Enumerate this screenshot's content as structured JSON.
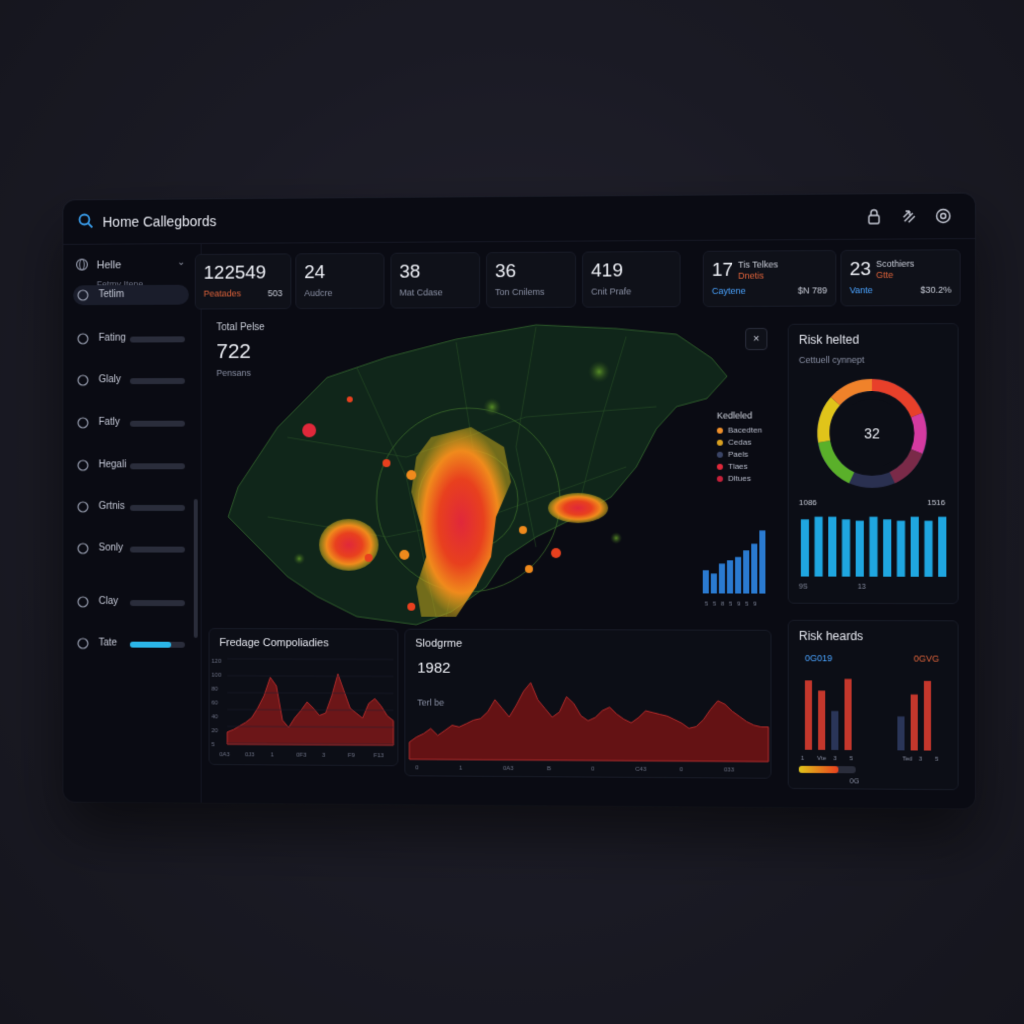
{
  "titlebar": {
    "title": "Home Callegbords",
    "icons": [
      "lock-icon",
      "share-icon",
      "settings-icon"
    ]
  },
  "sidebar": {
    "header_label": "Helle",
    "header_sub": "Fetmy Itene",
    "items": [
      {
        "label": "Tetlim",
        "icon": "person-icon",
        "active": true,
        "fill": 0
      },
      {
        "label": "Fating",
        "icon": "chart-icon",
        "active": false,
        "fill": 0
      },
      {
        "label": "Glaly",
        "icon": "globe-icon",
        "active": false,
        "fill": 0
      },
      {
        "label": "Fatly",
        "icon": "bars-icon",
        "active": false,
        "fill": 0
      },
      {
        "label": "Hegali",
        "icon": "user-icon",
        "active": false,
        "fill": 0
      },
      {
        "label": "Grtnis",
        "icon": "cloud-icon",
        "active": false,
        "fill": 0
      },
      {
        "label": "Sonly",
        "icon": "wave-icon",
        "active": false,
        "fill": 0
      },
      {
        "label": "Clay",
        "icon": "drop-icon",
        "active": false,
        "fill": 0
      },
      {
        "label": "Tate",
        "icon": "doc-icon",
        "active": false,
        "fill": 0.75
      }
    ]
  },
  "stats": [
    {
      "num": "122549",
      "label": "Peatades",
      "value": "503",
      "label_color": "#e0633a"
    },
    {
      "num": "24",
      "label": "Audcre",
      "value": ""
    },
    {
      "num": "38",
      "label": "Mat Cdase",
      "value": ""
    },
    {
      "num": "36",
      "label": "Ton Cnilems",
      "value": ""
    },
    {
      "num": "419",
      "label": "Cnit Prafe",
      "value": ""
    },
    {
      "num": "17",
      "top1": "Tis Telkes",
      "top2": "Dnetis",
      "label": "Caytene",
      "value": "$N 789",
      "label_color": "#4aa3ff"
    },
    {
      "num": "23",
      "top1": "Scothiers",
      "top2": "Gtte",
      "label": "Vante",
      "value": "$30.2%",
      "label_color": "#4aa3ff"
    }
  ],
  "map": {
    "caption": "Total Pelse",
    "value": "722",
    "sub": "Pensans",
    "legend_title": "Kedleled",
    "legend": [
      {
        "label": "Bacedten",
        "color": "#f0902a"
      },
      {
        "label": "Cedas",
        "color": "#d9a020"
      },
      {
        "label": "Paels",
        "color": "#3a4466"
      },
      {
        "label": "Tlaes",
        "color": "#e0283a"
      },
      {
        "label": "Dltues",
        "color": "#c8203a"
      }
    ],
    "mini_bars": [
      0.35,
      0.3,
      0.45,
      0.5,
      0.55,
      0.65,
      0.75,
      0.95
    ],
    "mini_ticks": [
      "5",
      "5",
      "8",
      "5",
      "9",
      "5",
      "9"
    ]
  },
  "risk_helped": {
    "title": "Risk helted",
    "subtitle": "Cettuell cynnept",
    "donut_value": "32",
    "bar_label_left": "1086",
    "bar_label_right": "1516",
    "bars": [
      0.86,
      0.9,
      0.9,
      0.86,
      0.84,
      0.9,
      0.86,
      0.84,
      0.9,
      0.84,
      0.9
    ],
    "ticks": [
      "9S",
      "13"
    ]
  },
  "drainage": {
    "title": "Fredage Compoliadies",
    "y_labels": [
      "120",
      "100",
      "80",
      "60",
      "40",
      "20",
      "5"
    ],
    "x_labels": [
      "0A3",
      "0J3",
      "1",
      "0F3",
      "3",
      "F9",
      "F13"
    ],
    "series": [
      10,
      12,
      15,
      18,
      22,
      30,
      40,
      55,
      48,
      20,
      14,
      22,
      28,
      35,
      30,
      24,
      26,
      40,
      58,
      44,
      30,
      26,
      22,
      34,
      38,
      32,
      24,
      20
    ]
  },
  "stage": {
    "title": "Slodgrme",
    "value": "1982",
    "sub": "Terl be",
    "x_labels": [
      "0",
      "1",
      "0A3",
      "B",
      "0",
      "C43",
      "0",
      "033"
    ],
    "series": [
      20,
      26,
      30,
      36,
      28,
      34,
      40,
      38,
      42,
      46,
      48,
      56,
      70,
      60,
      50,
      64,
      80,
      90,
      70,
      60,
      50,
      56,
      74,
      66,
      52,
      46,
      50,
      58,
      62,
      54,
      48,
      44,
      50,
      58,
      56,
      54,
      52,
      48,
      44,
      38,
      40,
      48,
      60,
      70,
      66,
      58,
      52,
      46,
      42,
      40,
      40
    ]
  },
  "risk_heards": {
    "title": "Risk heards",
    "label_left": "0G019",
    "label_right": "0GVG",
    "bars": [
      {
        "v": 0.82,
        "c": "#c4372c"
      },
      {
        "v": 0.7,
        "c": "#c4372c"
      },
      {
        "v": 0.46,
        "c": "#2a3558"
      },
      {
        "v": 0.84,
        "c": "#c4372c"
      },
      {
        "v": 0.0,
        "c": "#000000"
      },
      {
        "v": 0.0,
        "c": "#000000"
      },
      {
        "v": 0.0,
        "c": "#000000"
      },
      {
        "v": 0.4,
        "c": "#2a3558"
      },
      {
        "v": 0.66,
        "c": "#c4372c"
      },
      {
        "v": 0.82,
        "c": "#c4372c"
      }
    ],
    "x_labels_left": [
      "1",
      "Vte",
      "3",
      "5"
    ],
    "x_labels_right": [
      "Ted",
      "3",
      "5"
    ],
    "progress_fill": 0.7,
    "progress_label": "0G"
  }
}
